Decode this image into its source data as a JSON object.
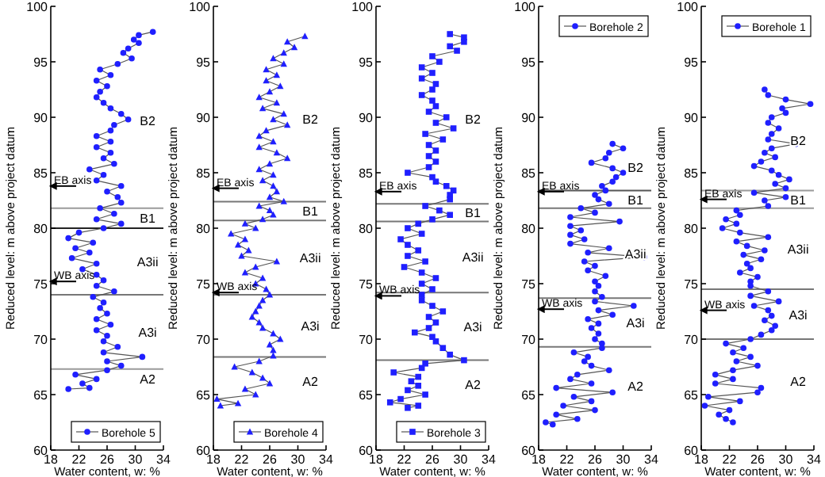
{
  "chart_data": [
    {
      "type": "line",
      "xlabel": "Water content, w: %",
      "ylabel": "Reduced level: m above project datum",
      "xlim": [
        18,
        34
      ],
      "xticks": [
        18,
        22,
        26,
        30,
        34
      ],
      "ylim": [
        60,
        100
      ],
      "yticks": [
        60,
        65,
        70,
        75,
        80,
        85,
        90,
        95,
        100
      ],
      "legend": "bottom right",
      "marker": "circle",
      "series": [
        {
          "name": "Borehole 5",
          "color": "#1f1fff",
          "x": [
            32.5,
            30.5,
            29.8,
            30.5,
            29.0,
            28.3,
            29.5,
            27.5,
            25.0,
            26.5,
            24.5,
            26.0,
            25.0,
            24.5,
            25.5,
            26.5,
            28.0,
            29.0,
            27.0,
            26.5,
            24.5,
            26.5,
            24.5,
            26.5,
            25.5,
            27.0,
            23.5,
            25.5,
            24.5,
            28.0,
            26.0,
            27.5,
            28.0,
            25.0,
            27.0,
            24.5,
            28.0,
            25.5,
            22.0,
            20.5,
            24.0,
            21.5,
            23.5,
            21.0,
            24.5,
            22.5,
            24.5,
            25.5,
            24.5,
            27.0,
            24.0,
            25.5,
            25.0,
            26.0,
            24.5,
            26.5,
            24.5,
            26.0,
            25.5,
            27.5,
            25.5,
            31.0,
            26.0,
            28.0,
            26.0,
            21.5,
            24.5,
            22.5,
            23.5,
            20.5
          ],
          "values": [
            97.7,
            97.4,
            97.0,
            96.7,
            96.2,
            95.8,
            95.3,
            94.8,
            94.3,
            93.8,
            93.3,
            92.8,
            92.3,
            91.8,
            91.3,
            90.8,
            90.3,
            89.8,
            89.3,
            88.8,
            88.3,
            87.8,
            87.3,
            86.8,
            86.3,
            85.8,
            85.3,
            84.8,
            84.3,
            83.8,
            83.3,
            82.8,
            82.3,
            81.8,
            81.3,
            80.8,
            80.4,
            80.0,
            79.6,
            79.1,
            78.7,
            78.2,
            77.8,
            77.3,
            76.8,
            76.3,
            75.8,
            75.3,
            74.8,
            74.3,
            73.8,
            73.3,
            72.8,
            72.3,
            71.8,
            71.3,
            70.8,
            70.3,
            69.8,
            69.3,
            68.8,
            68.4,
            68.0,
            67.6,
            67.2,
            66.8,
            66.4,
            66.0,
            65.6,
            65.5
          ]
        }
      ],
      "ref_lines": [
        {
          "axis": "y",
          "value": 81.8,
          "color": "#9a9a9a"
        },
        {
          "axis": "y",
          "value": 80.0,
          "color": "#222222"
        },
        {
          "axis": "y",
          "value": 74.0,
          "color": "#777777"
        },
        {
          "axis": "y",
          "value": 67.3,
          "color": "#9a9a9a"
        },
        {
          "axis": "y",
          "value": 83.8,
          "label": "EB axis",
          "color": "#000000"
        },
        {
          "axis": "y",
          "value": 75.2,
          "label": "WB axis",
          "color": "#000000"
        }
      ],
      "annotations": [
        "B2",
        "B1",
        "A3ii",
        "A3i",
        "A2"
      ]
    },
    {
      "type": "line",
      "xlabel": "Water content, w: %",
      "ylabel": "Reduced level: m above project datum",
      "xlim": [
        18,
        34
      ],
      "xticks": [
        18,
        22,
        26,
        30,
        34
      ],
      "ylim": [
        60,
        100
      ],
      "yticks": [
        60,
        65,
        70,
        75,
        80,
        85,
        90,
        95,
        100
      ],
      "legend": "bottom right",
      "marker": "triangle",
      "series": [
        {
          "name": "Borehole 4",
          "color": "#1f1fff",
          "x": [
            31.0,
            28.5,
            29.5,
            28.0,
            26.5,
            28.0,
            25.5,
            27.0,
            25.5,
            27.5,
            26.0,
            24.5,
            27.0,
            25.0,
            28.0,
            26.5,
            28.5,
            25.5,
            24.5,
            26.5,
            24.5,
            27.0,
            28.5,
            26.0,
            24.5,
            26.5,
            25.0,
            26.5,
            27.0,
            26.0,
            28.0,
            24.5,
            26.0,
            26.5,
            25.0,
            22.5,
            24.0,
            20.5,
            22.5,
            21.5,
            23.0,
            22.0,
            27.0,
            24.0,
            22.5,
            25.0,
            24.0,
            25.5,
            26.0,
            25.0,
            24.5,
            24.0,
            23.5,
            24.5,
            25.0,
            26.5,
            27.5,
            26.0,
            26.5,
            26.5,
            24.5,
            21.0,
            23.5,
            25.0,
            26.0,
            22.5,
            24.0,
            18.5,
            21.5,
            19.0
          ],
          "values": [
            97.3,
            96.8,
            96.3,
            95.8,
            95.3,
            94.8,
            94.3,
            93.8,
            93.3,
            92.8,
            92.3,
            91.8,
            91.3,
            90.8,
            90.3,
            89.8,
            89.3,
            88.8,
            88.3,
            87.8,
            87.3,
            86.8,
            86.3,
            85.8,
            85.3,
            84.8,
            84.3,
            83.8,
            83.3,
            82.8,
            82.4,
            82.0,
            81.6,
            81.2,
            80.8,
            80.4,
            80.0,
            79.5,
            79.0,
            78.5,
            78.0,
            77.5,
            77.0,
            76.5,
            76.0,
            75.5,
            75.0,
            74.5,
            74.0,
            73.5,
            73.0,
            72.5,
            72.0,
            71.5,
            71.0,
            70.5,
            70.0,
            69.5,
            69.0,
            68.5,
            68.0,
            67.5,
            67.0,
            66.5,
            66.0,
            65.5,
            65.0,
            64.6,
            64.2,
            64.0
          ]
        }
      ],
      "ref_lines": [
        {
          "axis": "y",
          "value": 82.4,
          "color": "#777777"
        },
        {
          "axis": "y",
          "value": 80.7,
          "color": "#777777"
        },
        {
          "axis": "y",
          "value": 74.0,
          "color": "#777777"
        },
        {
          "axis": "y",
          "value": 68.4,
          "color": "#777777"
        },
        {
          "axis": "y",
          "value": 83.6,
          "label": "EB axis",
          "color": "#000000"
        },
        {
          "axis": "y",
          "value": 74.2,
          "label": "WB axis",
          "color": "#000000"
        }
      ],
      "annotations": [
        "B2",
        "B1",
        "A3ii",
        "A3i",
        "A2"
      ]
    },
    {
      "type": "line",
      "xlabel": "Water content, w: %",
      "ylabel": "Reduced level: m above project datum",
      "xlim": [
        18,
        34
      ],
      "xticks": [
        18,
        22,
        26,
        30,
        34
      ],
      "ylim": [
        60,
        100
      ],
      "yticks": [
        60,
        65,
        70,
        75,
        80,
        85,
        90,
        95,
        100
      ],
      "legend": "bottom right",
      "marker": "square",
      "series": [
        {
          "name": "Borehole 3",
          "color": "#1f1fff",
          "x": [
            28.5,
            30.5,
            30.5,
            28.5,
            29.5,
            26.0,
            27.0,
            24.5,
            26.0,
            24.5,
            26.5,
            26.0,
            24.5,
            26.0,
            26.5,
            25.5,
            28.0,
            26.5,
            29.0,
            25.0,
            27.5,
            25.5,
            26.5,
            25.5,
            26.5,
            25.5,
            22.5,
            26.0,
            26.5,
            28.0,
            29.0,
            28.5,
            28.5,
            25.0,
            27.0,
            28.5,
            26.0,
            24.0,
            22.5,
            24.5,
            21.5,
            22.5,
            24.0,
            22.5,
            25.0,
            22.0,
            24.5,
            26.5,
            24.5,
            26.0,
            24.5,
            24.5,
            26.0,
            27.5,
            25.5,
            26.5,
            25.5,
            23.5,
            26.0,
            26.5,
            27.5,
            28.5,
            30.5,
            25.0,
            24.5,
            20.5,
            24.0,
            23.0,
            24.0,
            22.5,
            25.0,
            21.5,
            20.0,
            24.0,
            22.5
          ],
          "values": [
            97.5,
            97.2,
            96.8,
            96.4,
            96.0,
            95.5,
            95.0,
            94.5,
            94.0,
            93.5,
            93.0,
            92.5,
            92.0,
            91.5,
            91.0,
            90.5,
            90.0,
            89.5,
            89.0,
            88.5,
            88.0,
            87.5,
            87.0,
            86.5,
            86.0,
            85.5,
            85.0,
            84.6,
            84.2,
            83.8,
            83.4,
            83.0,
            82.6,
            82.0,
            81.6,
            81.2,
            80.8,
            80.4,
            80.0,
            79.5,
            79.0,
            78.5,
            78.0,
            77.5,
            77.0,
            76.5,
            76.0,
            75.5,
            75.0,
            74.5,
            74.0,
            73.5,
            73.0,
            72.5,
            72.0,
            71.5,
            71.0,
            70.6,
            70.2,
            69.8,
            69.2,
            68.6,
            68.1,
            67.8,
            67.4,
            67.0,
            66.6,
            66.2,
            65.8,
            65.4,
            65.0,
            64.6,
            64.3,
            64.0,
            63.8
          ]
        }
      ],
      "ref_lines": [
        {
          "axis": "y",
          "value": 82.2,
          "color": "#777777"
        },
        {
          "axis": "y",
          "value": 80.6,
          "color": "#777777"
        },
        {
          "axis": "y",
          "value": 74.2,
          "color": "#777777"
        },
        {
          "axis": "y",
          "value": 68.1,
          "color": "#777777"
        },
        {
          "axis": "y",
          "value": 83.3,
          "label": "EB axis",
          "color": "#000000"
        },
        {
          "axis": "y",
          "value": 73.9,
          "label": "WB axis",
          "color": "#000000"
        }
      ],
      "annotations": [
        "B2",
        "B1",
        "A3ii",
        "A3i",
        "A2"
      ]
    },
    {
      "type": "line",
      "xlabel": "Water content, w: %",
      "ylabel": "Reduced level: m above project datum",
      "xlim": [
        18,
        34
      ],
      "xticks": [
        18,
        22,
        26,
        30,
        34
      ],
      "ylim": [
        60,
        100
      ],
      "yticks": [
        60,
        65,
        70,
        75,
        80,
        85,
        90,
        95,
        100
      ],
      "legend": "top right",
      "marker": "circle",
      "series": [
        {
          "name": "Borehole 2",
          "color": "#1f1fff",
          "x": [
            28.5,
            30.0,
            28.0,
            27.5,
            25.5,
            28.5,
            30.0,
            29.0,
            28.5,
            27.0,
            27.5,
            26.0,
            26.5,
            28.0,
            24.0,
            26.0,
            22.5,
            29.5,
            22.5,
            24.0,
            22.5,
            24.5,
            22.5,
            28.0,
            25.0,
            33.0,
            24.5,
            26.0,
            25.0,
            27.5,
            26.0,
            26.5,
            26.0,
            27.0,
            26.0,
            31.5,
            26.5,
            28.5,
            25.0,
            26.5,
            25.5,
            26.5,
            26.0,
            27.0,
            27.0,
            23.0,
            25.0,
            24.5,
            25.5,
            28.0,
            23.5,
            22.5,
            25.5,
            20.5,
            28.5,
            23.0,
            25.5,
            21.5,
            26.0,
            20.5,
            23.5,
            19.0,
            20.0
          ],
          "values": [
            87.6,
            87.2,
            86.8,
            86.3,
            85.9,
            85.4,
            85.0,
            84.6,
            84.2,
            83.8,
            83.4,
            83.0,
            82.6,
            82.2,
            81.8,
            81.4,
            81.0,
            80.6,
            80.2,
            79.8,
            79.4,
            79.0,
            78.6,
            78.2,
            77.8,
            77.4,
            77.0,
            76.6,
            76.2,
            75.7,
            75.2,
            74.8,
            74.3,
            73.8,
            73.4,
            73.0,
            72.6,
            72.2,
            71.8,
            71.4,
            71.0,
            70.5,
            70.0,
            69.6,
            69.2,
            68.8,
            68.4,
            68.0,
            67.6,
            67.2,
            66.8,
            66.4,
            66.0,
            65.6,
            65.2,
            64.8,
            64.4,
            64.0,
            63.6,
            63.2,
            62.8,
            62.5,
            62.3
          ]
        }
      ],
      "ref_lines": [
        {
          "axis": "y",
          "value": 83.4,
          "color": "#555555"
        },
        {
          "axis": "y",
          "value": 81.8,
          "color": "#777777"
        },
        {
          "axis": "y",
          "value": 73.7,
          "color": "#777777"
        },
        {
          "axis": "y",
          "value": 69.3,
          "color": "#777777"
        },
        {
          "axis": "y",
          "value": 83.3,
          "label": "EB axis",
          "color": "#000000"
        },
        {
          "axis": "y",
          "value": 72.7,
          "label": "WB axis",
          "color": "#000000"
        }
      ],
      "annotations": [
        "B2",
        "B1",
        "A3ii",
        "A3i",
        "A2"
      ]
    },
    {
      "type": "line",
      "xlabel": "Water content, w: %",
      "ylabel": "Reduced level: m above project datum",
      "xlim": [
        18,
        34
      ],
      "xticks": [
        18,
        22,
        26,
        30,
        34
      ],
      "ylim": [
        60,
        100
      ],
      "yticks": [
        60,
        65,
        70,
        75,
        80,
        85,
        90,
        95,
        100
      ],
      "legend": "top right",
      "marker": "circle",
      "series": [
        {
          "name": "Borehole 1",
          "color": "#1f1fff",
          "x": [
            27.0,
            27.5,
            30.0,
            33.5,
            29.5,
            30.0,
            28.0,
            27.5,
            29.0,
            28.0,
            27.5,
            31.5,
            28.0,
            27.0,
            28.5,
            26.5,
            25.5,
            28.0,
            29.0,
            30.5,
            28.5,
            30.0,
            25.5,
            30.0,
            27.0,
            27.5,
            23.0,
            23.5,
            21.5,
            23.0,
            21.0,
            23.5,
            27.5,
            23.0,
            24.5,
            27.0,
            24.0,
            26.5,
            24.5,
            25.0,
            23.5,
            26.0,
            25.0,
            25.0,
            27.5,
            25.0,
            29.0,
            25.5,
            27.5,
            28.0,
            27.0,
            28.5,
            28.0,
            26.5,
            25.0,
            21.5,
            24.0,
            22.5,
            25.0,
            23.0,
            26.0,
            22.5,
            20.0,
            22.5,
            20.0,
            26.5,
            26.0,
            19.0,
            23.5,
            18.5,
            22.0,
            20.5,
            21.5,
            22.5
          ],
          "values": [
            92.5,
            92.0,
            91.6,
            91.2,
            90.8,
            90.4,
            90.0,
            89.5,
            89.0,
            88.5,
            88.0,
            87.6,
            87.2,
            86.8,
            86.4,
            86.0,
            85.6,
            85.2,
            84.8,
            84.4,
            84.0,
            83.6,
            83.2,
            82.8,
            82.5,
            82.0,
            81.6,
            81.2,
            80.8,
            80.4,
            80.0,
            79.6,
            79.2,
            78.8,
            78.4,
            78.0,
            77.6,
            77.2,
            76.8,
            76.4,
            76.0,
            75.6,
            75.2,
            74.8,
            74.3,
            73.9,
            73.4,
            73.0,
            72.6,
            72.1,
            71.7,
            71.2,
            70.8,
            70.4,
            70.0,
            69.6,
            69.2,
            68.8,
            68.4,
            68.0,
            67.6,
            67.2,
            66.8,
            66.4,
            66.0,
            65.6,
            65.2,
            64.8,
            64.4,
            64.0,
            63.6,
            63.2,
            62.8,
            62.5
          ]
        }
      ],
      "ref_lines": [
        {
          "axis": "y",
          "value": 83.4,
          "color": "#9a9a9a"
        },
        {
          "axis": "y",
          "value": 81.8,
          "color": "#9a9a9a"
        },
        {
          "axis": "y",
          "value": 74.5,
          "color": "#777777"
        },
        {
          "axis": "y",
          "value": 70.0,
          "color": "#777777"
        },
        {
          "axis": "y",
          "value": 82.6,
          "label": "EB axis",
          "color": "#000000"
        },
        {
          "axis": "y",
          "value": 72.6,
          "label": "WB axis",
          "color": "#000000"
        }
      ],
      "annotations": [
        "B2",
        "B1",
        "A3ii",
        "A3i",
        "A2"
      ]
    }
  ]
}
